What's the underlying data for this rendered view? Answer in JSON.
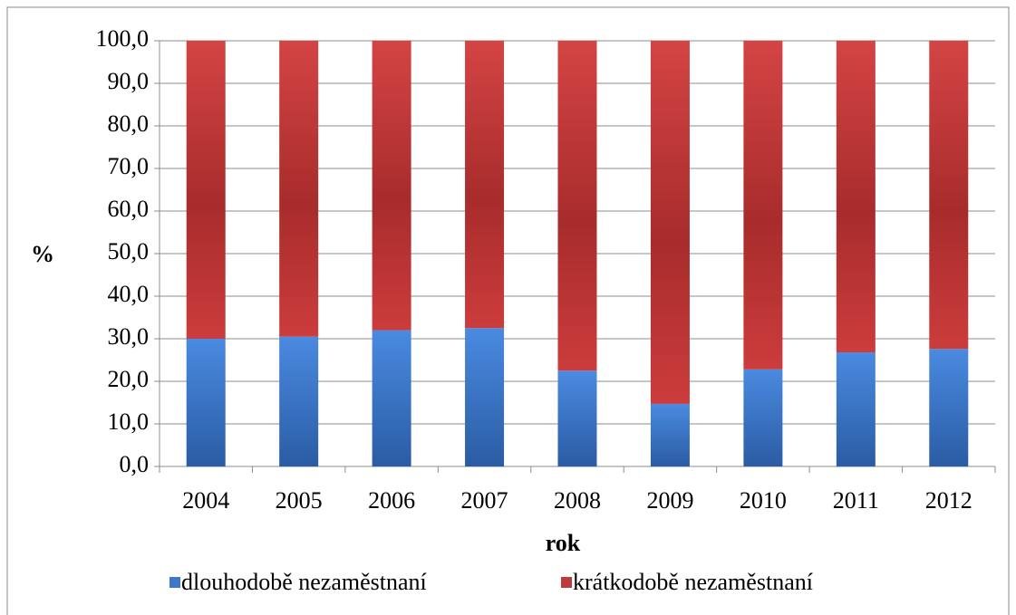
{
  "chart_data": {
    "type": "stacked_bar",
    "categories": [
      "2004",
      "2005",
      "2006",
      "2007",
      "2008",
      "2009",
      "2010",
      "2011",
      "2012"
    ],
    "series": [
      {
        "name": "dlouhodobě nezaměstnaní",
        "color": "#3a78cc",
        "values": [
          30.0,
          30.5,
          32.0,
          32.5,
          22.5,
          14.7,
          22.8,
          26.8,
          27.6
        ]
      },
      {
        "name": "krátkodobě nezaměstnaní",
        "color": "#c0393a",
        "values": [
          70.0,
          69.5,
          68.0,
          67.5,
          77.5,
          85.3,
          77.2,
          73.2,
          72.4
        ]
      }
    ],
    "xlabel": "rok",
    "ylabel": "%",
    "ylim": [
      0,
      100
    ],
    "yticks": [
      {
        "value": 0,
        "label": "0,0"
      },
      {
        "value": 10,
        "label": "10,0"
      },
      {
        "value": 20,
        "label": "20,0"
      },
      {
        "value": 30,
        "label": "30,0"
      },
      {
        "value": 40,
        "label": "40,0"
      },
      {
        "value": 50,
        "label": "50,0"
      },
      {
        "value": 60,
        "label": "60,0"
      },
      {
        "value": 70,
        "label": "70,0"
      },
      {
        "value": 80,
        "label": "80,0"
      },
      {
        "value": 90,
        "label": "90,0"
      },
      {
        "value": 100,
        "label": "100,0"
      }
    ],
    "grid": true,
    "legend": "bottom"
  }
}
